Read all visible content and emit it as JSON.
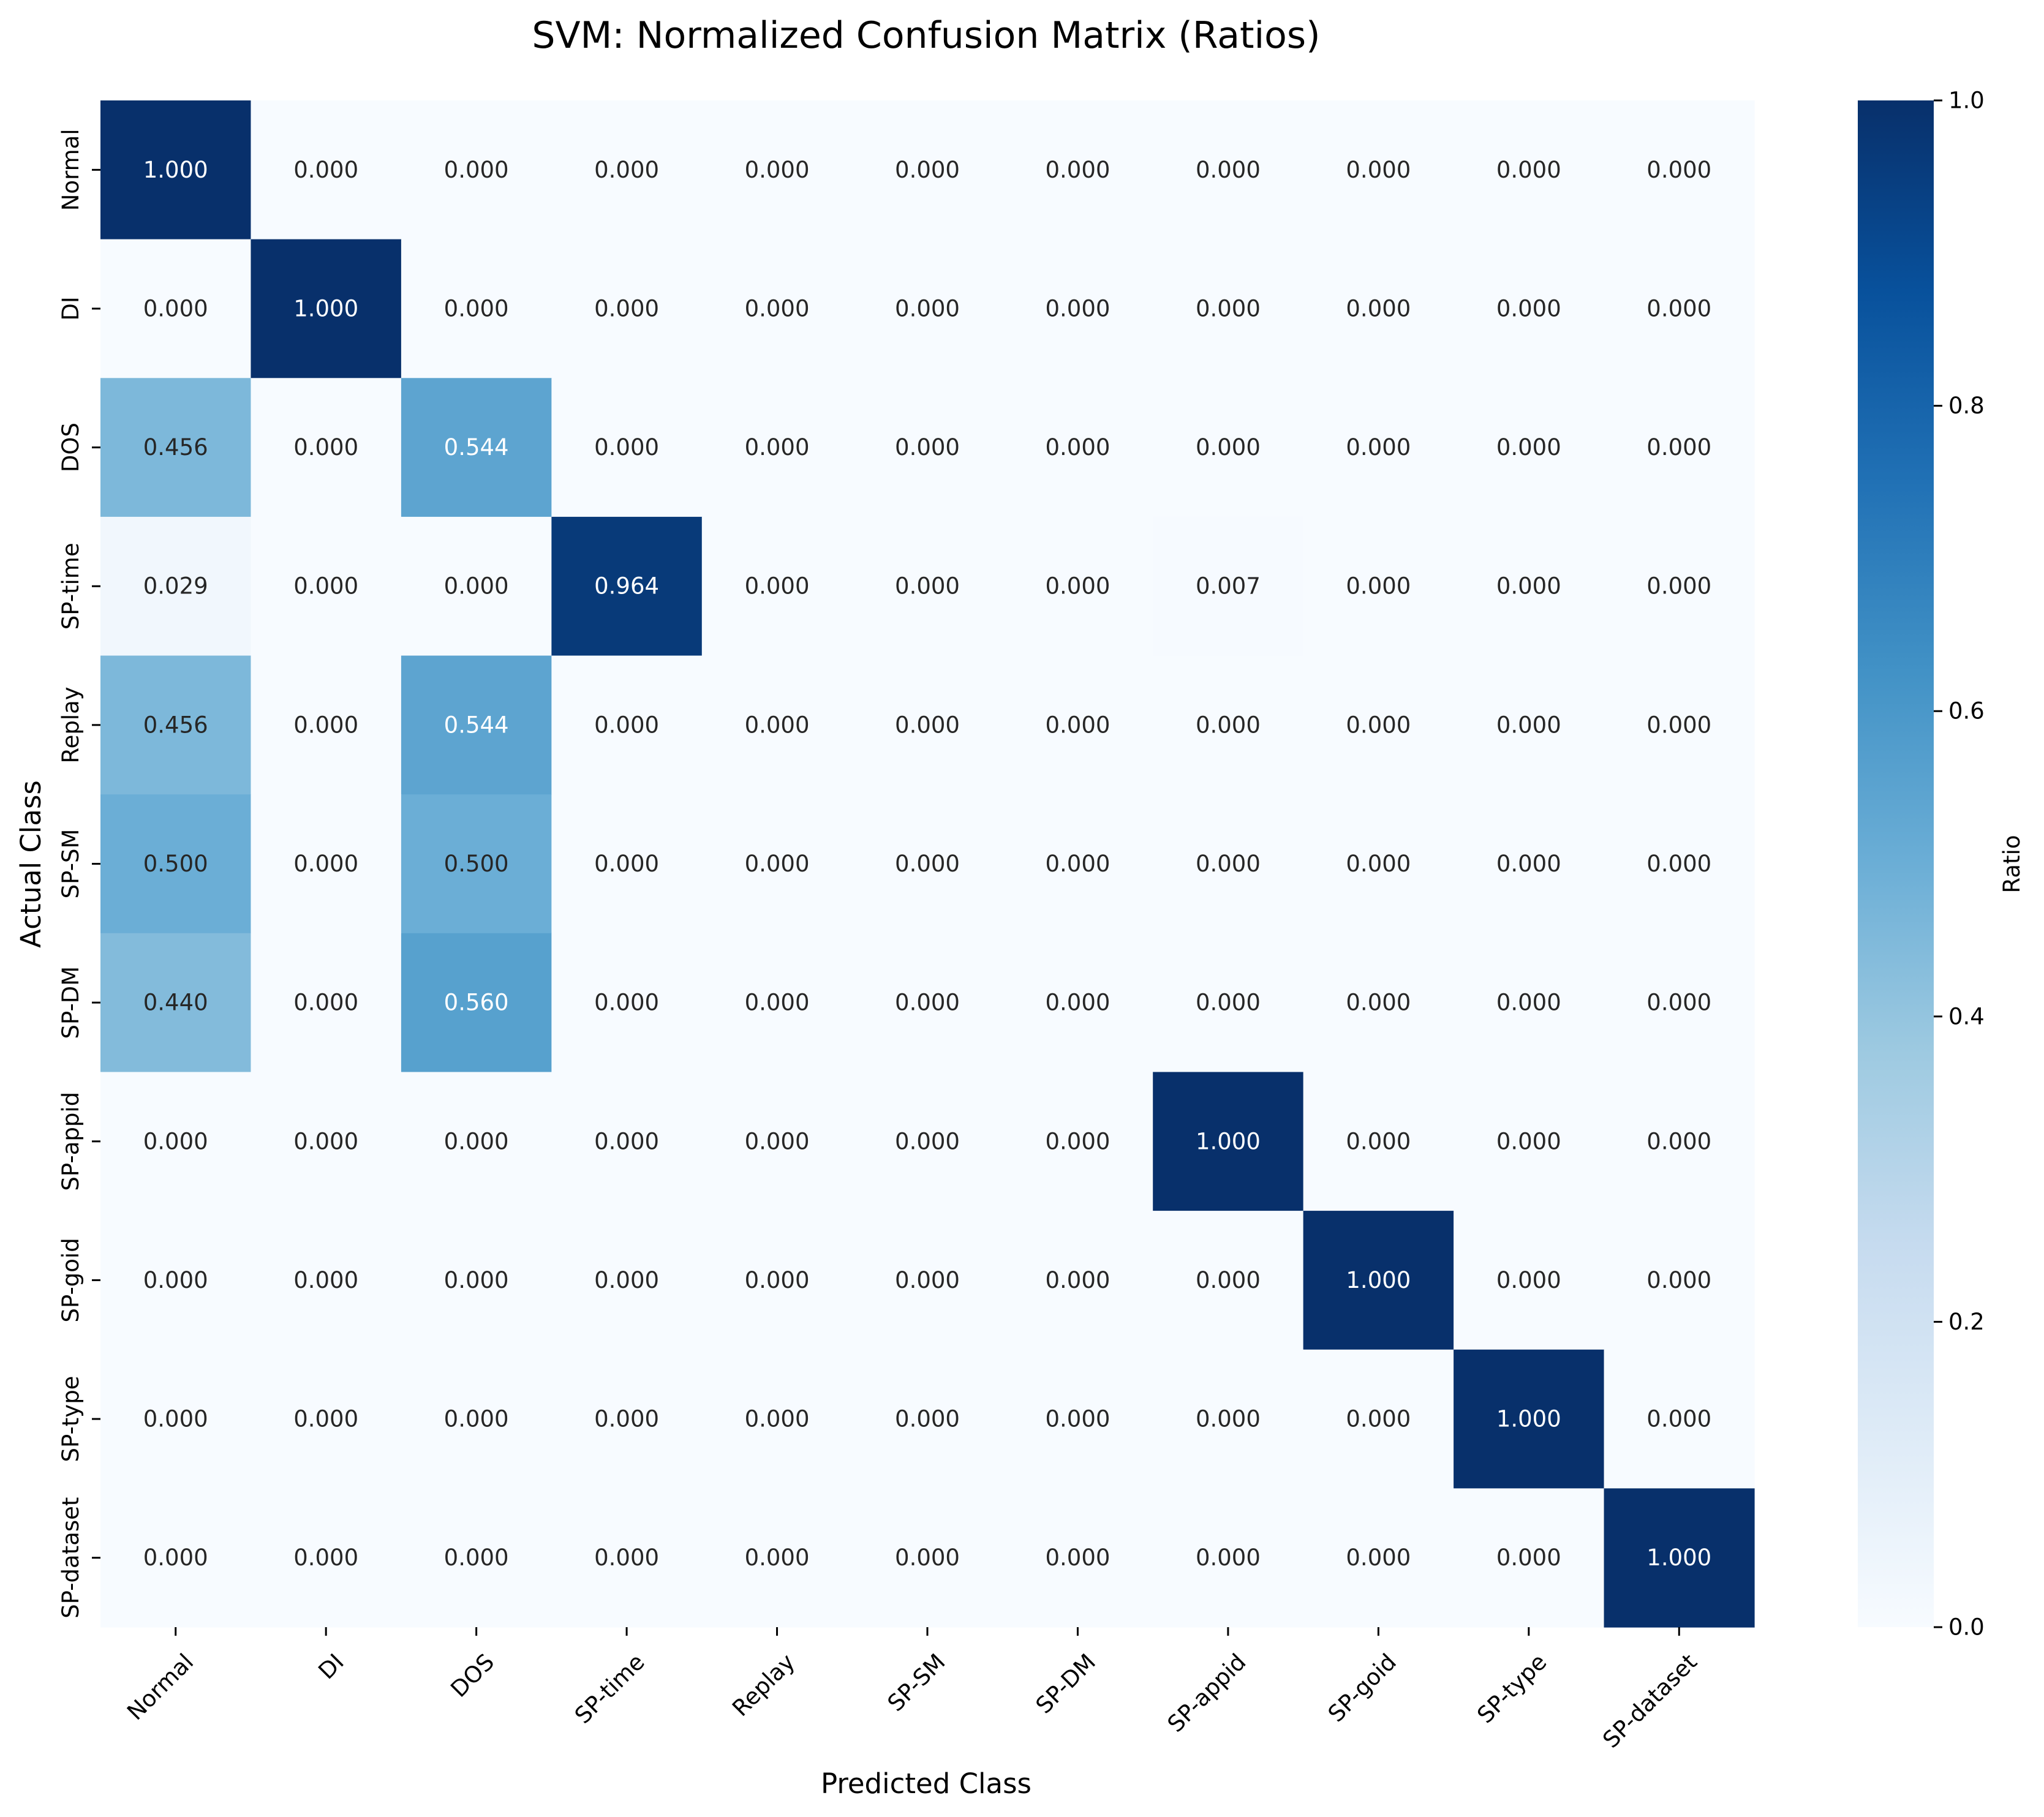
{
  "chart_data": {
    "type": "heatmap",
    "title": "SVM: Normalized Confusion Matrix (Ratios)",
    "xlabel": "Predicted Class",
    "ylabel": "Actual Class",
    "x_categories": [
      "Normal",
      "DI",
      "DOS",
      "SP-time",
      "Replay",
      "SP-SM",
      "SP-DM",
      "SP-appid",
      "SP-goid",
      "SP-type",
      "SP-dataset"
    ],
    "y_categories": [
      "Normal",
      "DI",
      "DOS",
      "SP-time",
      "Replay",
      "SP-SM",
      "SP-DM",
      "SP-appid",
      "SP-goid",
      "SP-type",
      "SP-dataset"
    ],
    "values": [
      [
        1.0,
        0.0,
        0.0,
        0.0,
        0.0,
        0.0,
        0.0,
        0.0,
        0.0,
        0.0,
        0.0
      ],
      [
        0.0,
        1.0,
        0.0,
        0.0,
        0.0,
        0.0,
        0.0,
        0.0,
        0.0,
        0.0,
        0.0
      ],
      [
        0.456,
        0.0,
        0.544,
        0.0,
        0.0,
        0.0,
        0.0,
        0.0,
        0.0,
        0.0,
        0.0
      ],
      [
        0.029,
        0.0,
        0.0,
        0.964,
        0.0,
        0.0,
        0.0,
        0.007,
        0.0,
        0.0,
        0.0
      ],
      [
        0.456,
        0.0,
        0.544,
        0.0,
        0.0,
        0.0,
        0.0,
        0.0,
        0.0,
        0.0,
        0.0
      ],
      [
        0.5,
        0.0,
        0.5,
        0.0,
        0.0,
        0.0,
        0.0,
        0.0,
        0.0,
        0.0,
        0.0
      ],
      [
        0.44,
        0.0,
        0.56,
        0.0,
        0.0,
        0.0,
        0.0,
        0.0,
        0.0,
        0.0,
        0.0
      ],
      [
        0.0,
        0.0,
        0.0,
        0.0,
        0.0,
        0.0,
        0.0,
        1.0,
        0.0,
        0.0,
        0.0
      ],
      [
        0.0,
        0.0,
        0.0,
        0.0,
        0.0,
        0.0,
        0.0,
        0.0,
        1.0,
        0.0,
        0.0
      ],
      [
        0.0,
        0.0,
        0.0,
        0.0,
        0.0,
        0.0,
        0.0,
        0.0,
        0.0,
        1.0,
        0.0
      ],
      [
        0.0,
        0.0,
        0.0,
        0.0,
        0.0,
        0.0,
        0.0,
        0.0,
        0.0,
        0.0,
        1.0
      ]
    ],
    "value_format": "3 decimals",
    "colormap": "Blues",
    "colorbar": {
      "label": "Ratio",
      "range": [
        0.0,
        1.0
      ],
      "ticks": [
        0.0,
        0.2,
        0.4,
        0.6,
        0.8,
        1.0
      ],
      "tick_labels": [
        "0.0",
        "0.2",
        "0.4",
        "0.6",
        "0.8",
        "1.0"
      ]
    },
    "colors": {
      "blues_ramp": [
        "#f7fbff",
        "#deebf7",
        "#c6dbef",
        "#9ecae1",
        "#6baed6",
        "#4292c6",
        "#2171b5",
        "#08519c",
        "#08306b"
      ],
      "text_light": "#ffffff",
      "text_dark": "#262626"
    }
  }
}
